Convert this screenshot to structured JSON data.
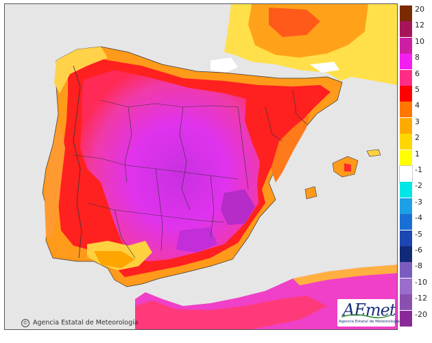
{
  "map": {
    "credit": "Agencia Estatal de Meteorología",
    "logo_text": "AEmet",
    "logo_caption": "Agencia Estatal de Meteorología",
    "copyright_symbol": "©"
  },
  "legend": {
    "items": [
      {
        "label": "20",
        "color": "#7a2a00"
      },
      {
        "label": "12",
        "color": "#a6155a"
      },
      {
        "label": "10",
        "color": "#cc1fa3"
      },
      {
        "label": "8",
        "color": "#f21ff0"
      },
      {
        "label": "6",
        "color": "#ff2d85"
      },
      {
        "label": "5",
        "color": "#ff0000"
      },
      {
        "label": "4",
        "color": "#ff7700"
      },
      {
        "label": "3",
        "color": "#ffaa00"
      },
      {
        "label": "2",
        "color": "#ffd700"
      },
      {
        "label": "1",
        "color": "#ffff00"
      },
      {
        "label": "-1",
        "color": "#ffffff"
      },
      {
        "label": "-2",
        "color": "#00e5e5"
      },
      {
        "label": "-3",
        "color": "#1ea0e8"
      },
      {
        "label": "-4",
        "color": "#1a6fd6"
      },
      {
        "label": "-5",
        "color": "#1c46b0"
      },
      {
        "label": "-6",
        "color": "#102a78"
      },
      {
        "label": "-8",
        "color": "#7a5cc0"
      },
      {
        "label": "-10",
        "color": "#9a6dcc"
      },
      {
        "label": "-12",
        "color": "#8a50b0"
      },
      {
        "label": "-20",
        "color": "#8a2a9a"
      }
    ]
  },
  "colors": {
    "sea": "#e6e6e6",
    "land_outside": "#e6e6e6",
    "border": "#333333"
  }
}
